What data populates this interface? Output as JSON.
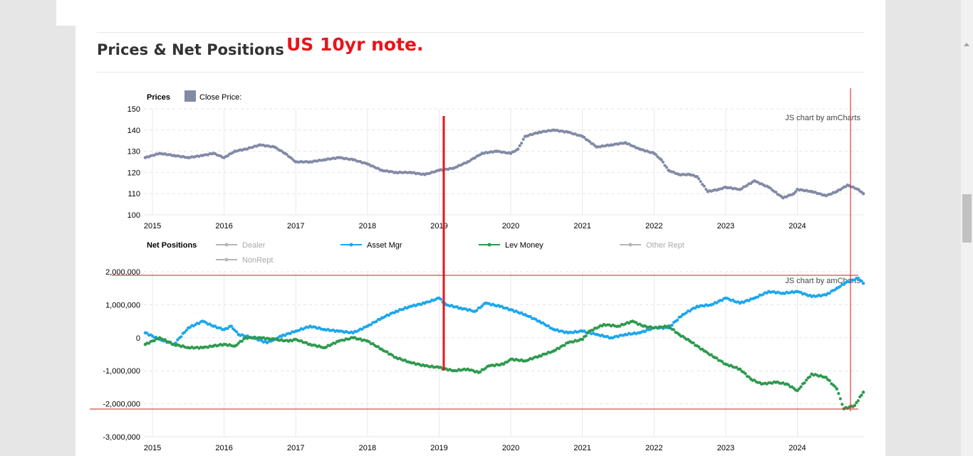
{
  "section": {
    "title": "Prices & Net Positions",
    "annotation": "US 10yr note."
  },
  "credit": "JS chart by amCharts",
  "chart_data": [
    {
      "type": "scatter",
      "title": "Prices",
      "legend": [
        {
          "name": "Close Price:",
          "color": "#828aa6"
        }
      ],
      "x_ticks": [
        "2015",
        "2016",
        "2017",
        "2018",
        "2019",
        "2020",
        "2021",
        "2022",
        "2023",
        "2024"
      ],
      "y_ticks": [
        "150",
        "140",
        "130",
        "120",
        "110",
        "100"
      ],
      "ylim": [
        100,
        150
      ],
      "xlim": [
        2014.88,
        2024.92
      ],
      "grid": true,
      "series": [
        {
          "name": "Close Price:",
          "color": "#828aa6",
          "points": [
            [
              2014.9,
              127
            ],
            [
              2015.1,
              129
            ],
            [
              2015.3,
              128
            ],
            [
              2015.5,
              127
            ],
            [
              2015.7,
              128
            ],
            [
              2015.85,
              129
            ],
            [
              2016.0,
              127
            ],
            [
              2016.15,
              130
            ],
            [
              2016.3,
              131
            ],
            [
              2016.5,
              133
            ],
            [
              2016.7,
              132
            ],
            [
              2016.85,
              129
            ],
            [
              2017.0,
              125
            ],
            [
              2017.2,
              125
            ],
            [
              2017.4,
              126
            ],
            [
              2017.6,
              127
            ],
            [
              2017.8,
              126
            ],
            [
              2018.0,
              124
            ],
            [
              2018.2,
              121
            ],
            [
              2018.4,
              120
            ],
            [
              2018.6,
              120
            ],
            [
              2018.8,
              119
            ],
            [
              2019.0,
              121
            ],
            [
              2019.2,
              122
            ],
            [
              2019.4,
              125
            ],
            [
              2019.6,
              129
            ],
            [
              2019.8,
              130
            ],
            [
              2020.0,
              129
            ],
            [
              2020.1,
              131
            ],
            [
              2020.2,
              137
            ],
            [
              2020.4,
              139
            ],
            [
              2020.6,
              140
            ],
            [
              2020.8,
              139
            ],
            [
              2021.0,
              137
            ],
            [
              2021.2,
              132
            ],
            [
              2021.4,
              133
            ],
            [
              2021.6,
              134
            ],
            [
              2021.8,
              131
            ],
            [
              2022.0,
              129
            ],
            [
              2022.1,
              126
            ],
            [
              2022.2,
              121
            ],
            [
              2022.35,
              119
            ],
            [
              2022.5,
              119
            ],
            [
              2022.6,
              118
            ],
            [
              2022.75,
              111
            ],
            [
              2022.9,
              112
            ],
            [
              2023.0,
              113
            ],
            [
              2023.2,
              112
            ],
            [
              2023.4,
              116
            ],
            [
              2023.6,
              113
            ],
            [
              2023.8,
              108
            ],
            [
              2023.95,
              110
            ],
            [
              2024.0,
              112
            ],
            [
              2024.2,
              111
            ],
            [
              2024.4,
              109
            ],
            [
              2024.55,
              111
            ],
            [
              2024.7,
              114
            ],
            [
              2024.85,
              112
            ],
            [
              2024.92,
              110
            ]
          ]
        }
      ]
    },
    {
      "type": "scatter",
      "title": "Net Positions",
      "legend": [
        {
          "name": "Dealer",
          "color": "#b6b6b6",
          "enabled": false
        },
        {
          "name": "Asset Mgr",
          "color": "#1ca7ec",
          "enabled": true
        },
        {
          "name": "Lev Money",
          "color": "#2e9a4e",
          "enabled": true
        },
        {
          "name": "Other Rept",
          "color": "#b6b6b6",
          "enabled": false
        },
        {
          "name": "NonRept",
          "color": "#b6b6b6",
          "enabled": false
        }
      ],
      "x_ticks": [
        "2015",
        "2016",
        "2017",
        "2018",
        "2019",
        "2020",
        "2021",
        "2022",
        "2023",
        "2024"
      ],
      "y_ticks": [
        "2,000,000",
        "1,000,000",
        "0",
        "-1,000,000",
        "-2,000,000",
        "-3,000,000"
      ],
      "ylim": [
        -3000000,
        2000000
      ],
      "xlim": [
        2014.88,
        2024.92
      ],
      "grid": true,
      "series": [
        {
          "name": "Asset Mgr",
          "color": "#1ca7ec",
          "points": [
            [
              2014.9,
              150000
            ],
            [
              2015.1,
              -50000
            ],
            [
              2015.3,
              -200000
            ],
            [
              2015.5,
              300000
            ],
            [
              2015.7,
              500000
            ],
            [
              2015.85,
              350000
            ],
            [
              2016.0,
              250000
            ],
            [
              2016.1,
              350000
            ],
            [
              2016.2,
              100000
            ],
            [
              2016.4,
              0
            ],
            [
              2016.6,
              -150000
            ],
            [
              2016.8,
              50000
            ],
            [
              2017.0,
              200000
            ],
            [
              2017.2,
              350000
            ],
            [
              2017.4,
              250000
            ],
            [
              2017.6,
              200000
            ],
            [
              2017.8,
              150000
            ],
            [
              2018.0,
              350000
            ],
            [
              2018.2,
              600000
            ],
            [
              2018.4,
              800000
            ],
            [
              2018.6,
              950000
            ],
            [
              2018.8,
              1050000
            ],
            [
              2019.0,
              1200000
            ],
            [
              2019.1,
              1000000
            ],
            [
              2019.3,
              900000
            ],
            [
              2019.5,
              800000
            ],
            [
              2019.65,
              1050000
            ],
            [
              2019.85,
              950000
            ],
            [
              2020.0,
              850000
            ],
            [
              2020.2,
              700000
            ],
            [
              2020.4,
              500000
            ],
            [
              2020.6,
              250000
            ],
            [
              2020.8,
              150000
            ],
            [
              2021.0,
              200000
            ],
            [
              2021.2,
              100000
            ],
            [
              2021.4,
              0
            ],
            [
              2021.6,
              100000
            ],
            [
              2021.8,
              150000
            ],
            [
              2022.0,
              300000
            ],
            [
              2022.2,
              300000
            ],
            [
              2022.4,
              700000
            ],
            [
              2022.6,
              950000
            ],
            [
              2022.8,
              1000000
            ],
            [
              2023.0,
              1200000
            ],
            [
              2023.2,
              1050000
            ],
            [
              2023.4,
              1200000
            ],
            [
              2023.6,
              1400000
            ],
            [
              2023.8,
              1350000
            ],
            [
              2024.0,
              1400000
            ],
            [
              2024.2,
              1250000
            ],
            [
              2024.4,
              1300000
            ],
            [
              2024.55,
              1500000
            ],
            [
              2024.7,
              1700000
            ],
            [
              2024.85,
              1800000
            ],
            [
              2024.92,
              1650000
            ]
          ]
        },
        {
          "name": "Lev Money",
          "color": "#2e9a4e",
          "points": [
            [
              2014.9,
              -200000
            ],
            [
              2015.1,
              0
            ],
            [
              2015.3,
              -200000
            ],
            [
              2015.5,
              -300000
            ],
            [
              2015.7,
              -300000
            ],
            [
              2015.85,
              -250000
            ],
            [
              2016.0,
              -200000
            ],
            [
              2016.15,
              -250000
            ],
            [
              2016.3,
              0
            ],
            [
              2016.5,
              0
            ],
            [
              2016.7,
              -50000
            ],
            [
              2016.9,
              -100000
            ],
            [
              2017.0,
              -50000
            ],
            [
              2017.2,
              -200000
            ],
            [
              2017.4,
              -300000
            ],
            [
              2017.6,
              -100000
            ],
            [
              2017.8,
              0
            ],
            [
              2018.0,
              -100000
            ],
            [
              2018.2,
              -350000
            ],
            [
              2018.4,
              -600000
            ],
            [
              2018.6,
              -750000
            ],
            [
              2018.8,
              -850000
            ],
            [
              2019.0,
              -900000
            ],
            [
              2019.2,
              -1000000
            ],
            [
              2019.4,
              -950000
            ],
            [
              2019.55,
              -1050000
            ],
            [
              2019.7,
              -850000
            ],
            [
              2019.9,
              -800000
            ],
            [
              2020.0,
              -650000
            ],
            [
              2020.2,
              -700000
            ],
            [
              2020.4,
              -550000
            ],
            [
              2020.6,
              -400000
            ],
            [
              2020.8,
              -150000
            ],
            [
              2021.0,
              -50000
            ],
            [
              2021.1,
              200000
            ],
            [
              2021.3,
              400000
            ],
            [
              2021.5,
              350000
            ],
            [
              2021.7,
              500000
            ],
            [
              2021.85,
              350000
            ],
            [
              2022.0,
              300000
            ],
            [
              2022.2,
              350000
            ],
            [
              2022.35,
              100000
            ],
            [
              2022.5,
              -100000
            ],
            [
              2022.7,
              -400000
            ],
            [
              2022.85,
              -600000
            ],
            [
              2023.0,
              -800000
            ],
            [
              2023.2,
              -950000
            ],
            [
              2023.35,
              -1250000
            ],
            [
              2023.5,
              -1400000
            ],
            [
              2023.7,
              -1350000
            ],
            [
              2023.85,
              -1400000
            ],
            [
              2024.0,
              -1600000
            ],
            [
              2024.2,
              -1100000
            ],
            [
              2024.4,
              -1200000
            ],
            [
              2024.55,
              -1550000
            ],
            [
              2024.65,
              -2150000
            ],
            [
              2024.8,
              -2050000
            ],
            [
              2024.92,
              -1650000
            ]
          ]
        }
      ]
    }
  ]
}
